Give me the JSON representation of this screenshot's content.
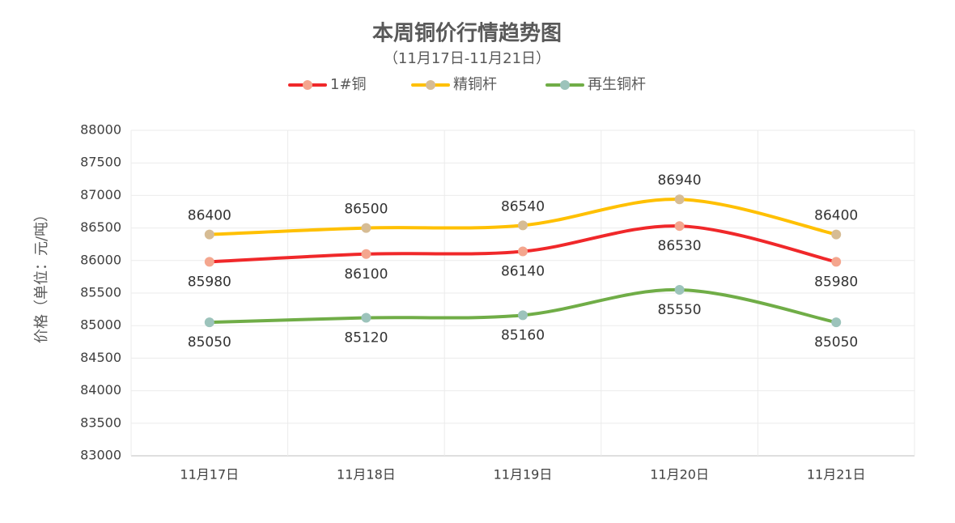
{
  "chart_data": {
    "type": "line",
    "title": "本周铜价行情趋势图",
    "subtitle": "（11月17日-11月21日）",
    "y_label": "价格（单位：元/吨）",
    "categories": [
      "11月17日",
      "11月18日",
      "11月19日",
      "11月20日",
      "11月21日"
    ],
    "series": [
      {
        "name": "1#铜",
        "color": "#f0282a",
        "marker_color": "#f4a68e",
        "label_position": "below",
        "values": [
          85980,
          86100,
          86140,
          86530,
          85980
        ]
      },
      {
        "name": "精铜杆",
        "color": "#ffc000",
        "marker_color": "#d6bc94",
        "label_position": "above",
        "values": [
          86400,
          86500,
          86540,
          86940,
          86400
        ]
      },
      {
        "name": "再生铜杆",
        "color": "#70ad47",
        "marker_color": "#9cc3bb",
        "label_position": "below",
        "values": [
          85050,
          85120,
          85160,
          85550,
          85050
        ]
      }
    ],
    "ylim": [
      83000,
      88000
    ],
    "yticks": [
      83000,
      83500,
      84000,
      84500,
      85000,
      85500,
      86000,
      86500,
      87000,
      87500,
      88000
    ],
    "grid": true,
    "smooth": true,
    "legend": "top"
  }
}
